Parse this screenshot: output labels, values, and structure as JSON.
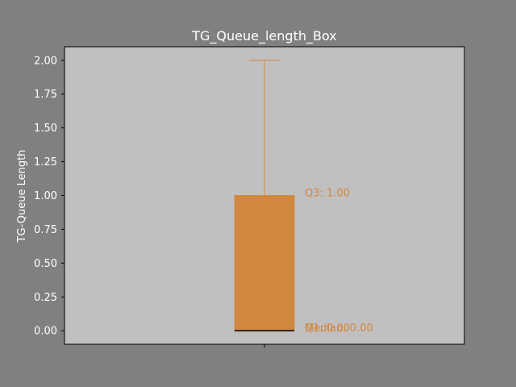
{
  "chart_data": {
    "type": "box",
    "title": "TG_Queue_length_Box",
    "xlabel": "",
    "ylabel": "TG-Queue Length",
    "ylim": [
      -0.1,
      2.1
    ],
    "yticks": [
      "0.00",
      "0.25",
      "0.50",
      "0.75",
      "1.00",
      "1.25",
      "1.50",
      "1.75",
      "2.00"
    ],
    "xticks": [
      ""
    ],
    "grid": false,
    "box": {
      "min": 0.0,
      "q1": 0.0,
      "median": 0.0,
      "q3": 1.0,
      "max": 2.0
    },
    "annotations": [
      {
        "text": "Q3: 1.00",
        "y": 1.0
      },
      {
        "text": "Median: 0.00",
        "y": 0.0
      },
      {
        "text": "Q1: 0.00",
        "y": 0.0
      }
    ],
    "colors": {
      "figure_bg": "#808080",
      "axes_bg": "#c0c0c0",
      "box": "#d08840",
      "annotation": "#d4873f",
      "median": "#000000"
    }
  }
}
